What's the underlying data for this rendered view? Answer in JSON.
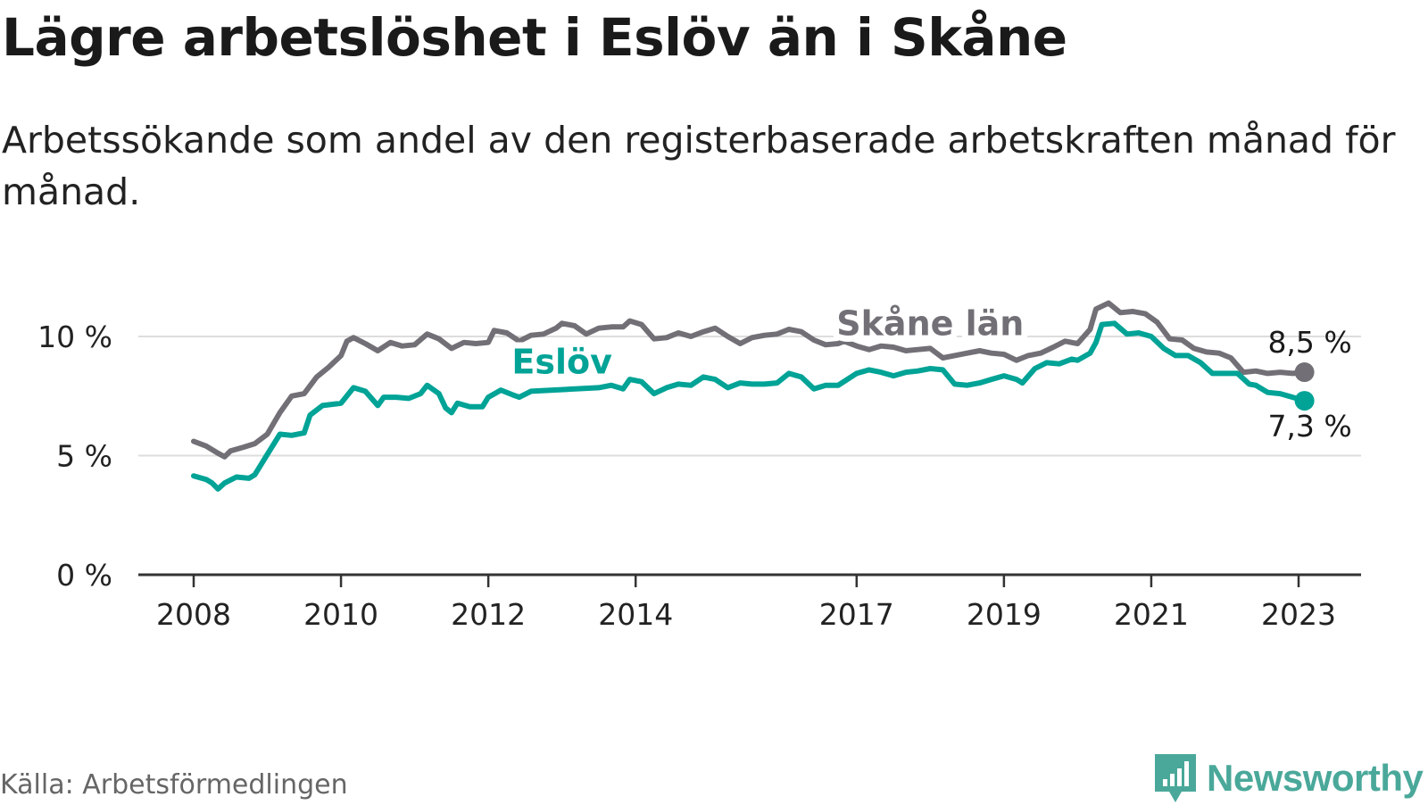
{
  "title": "Lägre arbetslöshet i Eslöv än i Skåne",
  "subtitle": "Arbetssökande som andel av den registerbaserade arbetskraften månad för månad.",
  "source": "Källa: Arbetsförmedlingen",
  "brand": {
    "name": "Newsworthy",
    "icon": "newsworthy-logo-icon"
  },
  "colors": {
    "eslov": "#00a396",
    "skane": "#727076",
    "grid": "#dddddd",
    "axis": "#333333",
    "text": "#222222"
  },
  "chart_data": {
    "type": "line",
    "title": "Lägre arbetslöshet i Eslöv än i Skåne",
    "xlabel": "",
    "ylabel": "",
    "ylim": [
      0,
      11.5
    ],
    "xlim": [
      2007.3,
      2024.0
    ],
    "y_ticks": [
      {
        "value": 0,
        "label": "0 %"
      },
      {
        "value": 5,
        "label": "5 %"
      },
      {
        "value": 10,
        "label": "10 %"
      }
    ],
    "x_ticks": [
      {
        "value": 2008,
        "label": "2008"
      },
      {
        "value": 2010,
        "label": "2010"
      },
      {
        "value": 2012,
        "label": "2012"
      },
      {
        "value": 2014,
        "label": "2014"
      },
      {
        "value": 2017,
        "label": "2017"
      },
      {
        "value": 2019,
        "label": "2019"
      },
      {
        "value": 2021,
        "label": "2021"
      },
      {
        "value": 2023,
        "label": "2023"
      }
    ],
    "grid": true,
    "series": [
      {
        "name": "Skåne län",
        "key": "skane",
        "end_label": "8,5 %",
        "points": [
          [
            2008.0,
            5.6
          ],
          [
            2008.17,
            5.4
          ],
          [
            2008.33,
            5.1
          ],
          [
            2008.42,
            4.95
          ],
          [
            2008.5,
            5.2
          ],
          [
            2008.67,
            5.35
          ],
          [
            2008.83,
            5.5
          ],
          [
            2009.0,
            5.9
          ],
          [
            2009.17,
            6.8
          ],
          [
            2009.33,
            7.5
          ],
          [
            2009.5,
            7.6
          ],
          [
            2009.67,
            8.3
          ],
          [
            2009.83,
            8.7
          ],
          [
            2010.0,
            9.2
          ],
          [
            2010.08,
            9.8
          ],
          [
            2010.17,
            9.95
          ],
          [
            2010.33,
            9.7
          ],
          [
            2010.5,
            9.4
          ],
          [
            2010.67,
            9.75
          ],
          [
            2010.83,
            9.6
          ],
          [
            2011.0,
            9.65
          ],
          [
            2011.17,
            10.1
          ],
          [
            2011.33,
            9.9
          ],
          [
            2011.5,
            9.5
          ],
          [
            2011.67,
            9.75
          ],
          [
            2011.83,
            9.7
          ],
          [
            2012.0,
            9.75
          ],
          [
            2012.08,
            10.25
          ],
          [
            2012.25,
            10.15
          ],
          [
            2012.42,
            9.8
          ],
          [
            2012.58,
            10.05
          ],
          [
            2012.75,
            10.1
          ],
          [
            2012.92,
            10.35
          ],
          [
            2013.0,
            10.55
          ],
          [
            2013.17,
            10.45
          ],
          [
            2013.33,
            10.1
          ],
          [
            2013.5,
            10.35
          ],
          [
            2013.67,
            10.4
          ],
          [
            2013.83,
            10.4
          ],
          [
            2013.92,
            10.65
          ],
          [
            2014.08,
            10.5
          ],
          [
            2014.25,
            9.9
          ],
          [
            2014.42,
            9.95
          ],
          [
            2014.58,
            10.15
          ],
          [
            2014.75,
            10.0
          ],
          [
            2014.92,
            10.2
          ],
          [
            2015.08,
            10.35
          ],
          [
            2015.25,
            10.0
          ],
          [
            2015.42,
            9.7
          ],
          [
            2015.58,
            9.95
          ],
          [
            2015.75,
            10.05
          ],
          [
            2015.92,
            10.1
          ],
          [
            2016.08,
            10.3
          ],
          [
            2016.25,
            10.2
          ],
          [
            2016.42,
            9.85
          ],
          [
            2016.58,
            9.65
          ],
          [
            2016.75,
            9.7
          ],
          [
            2016.83,
            9.8
          ],
          [
            2017.0,
            9.6
          ],
          [
            2017.17,
            9.45
          ],
          [
            2017.33,
            9.6
          ],
          [
            2017.5,
            9.55
          ],
          [
            2017.67,
            9.4
          ],
          [
            2017.83,
            9.45
          ],
          [
            2018.0,
            9.5
          ],
          [
            2018.17,
            9.1
          ],
          [
            2018.33,
            9.2
          ],
          [
            2018.5,
            9.3
          ],
          [
            2018.67,
            9.4
          ],
          [
            2018.83,
            9.3
          ],
          [
            2019.0,
            9.25
          ],
          [
            2019.17,
            9.0
          ],
          [
            2019.33,
            9.2
          ],
          [
            2019.5,
            9.3
          ],
          [
            2019.67,
            9.55
          ],
          [
            2019.83,
            9.8
          ],
          [
            2020.0,
            9.7
          ],
          [
            2020.17,
            10.3
          ],
          [
            2020.25,
            11.15
          ],
          [
            2020.42,
            11.4
          ],
          [
            2020.58,
            11.0
          ],
          [
            2020.75,
            11.05
          ],
          [
            2020.92,
            10.95
          ],
          [
            2021.08,
            10.6
          ],
          [
            2021.25,
            9.9
          ],
          [
            2021.42,
            9.85
          ],
          [
            2021.58,
            9.5
          ],
          [
            2021.75,
            9.35
          ],
          [
            2021.92,
            9.3
          ],
          [
            2022.08,
            9.1
          ],
          [
            2022.25,
            8.5
          ],
          [
            2022.42,
            8.55
          ],
          [
            2022.58,
            8.45
          ],
          [
            2022.75,
            8.5
          ],
          [
            2022.92,
            8.45
          ],
          [
            2023.08,
            8.5
          ]
        ]
      },
      {
        "name": "Eslöv",
        "key": "eslov",
        "end_label": "7,3 %",
        "points": [
          [
            2008.0,
            4.15
          ],
          [
            2008.17,
            4.0
          ],
          [
            2008.25,
            3.85
          ],
          [
            2008.33,
            3.6
          ],
          [
            2008.42,
            3.85
          ],
          [
            2008.58,
            4.1
          ],
          [
            2008.75,
            4.05
          ],
          [
            2008.83,
            4.2
          ],
          [
            2009.0,
            5.05
          ],
          [
            2009.17,
            5.9
          ],
          [
            2009.33,
            5.85
          ],
          [
            2009.5,
            5.95
          ],
          [
            2009.58,
            6.7
          ],
          [
            2009.75,
            7.1
          ],
          [
            2010.0,
            7.2
          ],
          [
            2010.17,
            7.85
          ],
          [
            2010.33,
            7.7
          ],
          [
            2010.5,
            7.1
          ],
          [
            2010.58,
            7.45
          ],
          [
            2010.75,
            7.45
          ],
          [
            2010.92,
            7.4
          ],
          [
            2011.08,
            7.6
          ],
          [
            2011.17,
            7.95
          ],
          [
            2011.33,
            7.6
          ],
          [
            2011.42,
            7.0
          ],
          [
            2011.5,
            6.8
          ],
          [
            2011.58,
            7.2
          ],
          [
            2011.75,
            7.05
          ],
          [
            2011.92,
            7.05
          ],
          [
            2012.0,
            7.45
          ],
          [
            2012.17,
            7.75
          ],
          [
            2012.33,
            7.55
          ],
          [
            2012.42,
            7.45
          ],
          [
            2012.58,
            7.7
          ],
          [
            2013.5,
            7.85
          ],
          [
            2013.67,
            7.95
          ],
          [
            2013.83,
            7.8
          ],
          [
            2013.92,
            8.2
          ],
          [
            2014.08,
            8.1
          ],
          [
            2014.25,
            7.6
          ],
          [
            2014.42,
            7.85
          ],
          [
            2014.58,
            8.0
          ],
          [
            2014.75,
            7.95
          ],
          [
            2014.92,
            8.3
          ],
          [
            2015.08,
            8.2
          ],
          [
            2015.25,
            7.85
          ],
          [
            2015.42,
            8.05
          ],
          [
            2015.58,
            8.0
          ],
          [
            2015.75,
            8.0
          ],
          [
            2015.92,
            8.05
          ],
          [
            2016.08,
            8.45
          ],
          [
            2016.25,
            8.3
          ],
          [
            2016.42,
            7.8
          ],
          [
            2016.58,
            7.95
          ],
          [
            2016.75,
            7.95
          ],
          [
            2017.0,
            8.45
          ],
          [
            2017.17,
            8.6
          ],
          [
            2017.33,
            8.5
          ],
          [
            2017.5,
            8.35
          ],
          [
            2017.67,
            8.5
          ],
          [
            2017.83,
            8.55
          ],
          [
            2018.0,
            8.65
          ],
          [
            2018.17,
            8.6
          ],
          [
            2018.33,
            8.0
          ],
          [
            2018.5,
            7.95
          ],
          [
            2018.67,
            8.05
          ],
          [
            2018.83,
            8.2
          ],
          [
            2019.0,
            8.35
          ],
          [
            2019.17,
            8.2
          ],
          [
            2019.25,
            8.05
          ],
          [
            2019.42,
            8.65
          ],
          [
            2019.58,
            8.9
          ],
          [
            2019.75,
            8.85
          ],
          [
            2019.92,
            9.05
          ],
          [
            2020.0,
            9.0
          ],
          [
            2020.17,
            9.3
          ],
          [
            2020.25,
            9.75
          ],
          [
            2020.33,
            10.5
          ],
          [
            2020.5,
            10.55
          ],
          [
            2020.67,
            10.1
          ],
          [
            2020.83,
            10.15
          ],
          [
            2021.0,
            10.0
          ],
          [
            2021.17,
            9.5
          ],
          [
            2021.33,
            9.2
          ],
          [
            2021.5,
            9.2
          ],
          [
            2021.67,
            8.9
          ],
          [
            2021.83,
            8.45
          ],
          [
            2022.0,
            8.45
          ],
          [
            2022.17,
            8.45
          ],
          [
            2022.33,
            8.0
          ],
          [
            2022.42,
            7.95
          ],
          [
            2022.58,
            7.65
          ],
          [
            2022.75,
            7.6
          ],
          [
            2022.92,
            7.45
          ],
          [
            2023.08,
            7.3
          ]
        ]
      }
    ],
    "annotations": [
      {
        "series": "skane",
        "text": "Skåne län",
        "x": 2018.0,
        "y": 10.05
      },
      {
        "series": "eslov",
        "text": "Eslöv",
        "x": 2013.0,
        "y": 8.45
      }
    ]
  }
}
